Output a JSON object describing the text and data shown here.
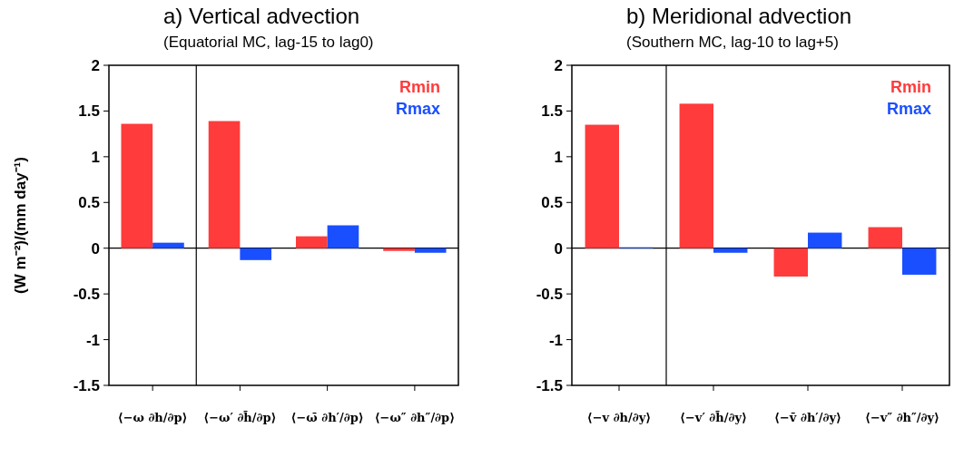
{
  "chart_data": [
    {
      "type": "bar",
      "title": "a) Vertical advection",
      "subtitle": "(Equatorial MC, lag-15 to lag0)",
      "ylabel": "(W m⁻²)/(mm day⁻¹)",
      "categories": [
        "⟨−ω ∂h/∂p⟩",
        "⟨−ω′ ∂h̄/∂p⟩",
        "⟨−ω̄ ∂h′/∂p⟩",
        "⟨−ω″ ∂h″/∂p⟩"
      ],
      "series": [
        {
          "name": "Rmin",
          "color": "#ff3b3b",
          "values": [
            1.36,
            1.39,
            0.13,
            -0.03
          ]
        },
        {
          "name": "Rmax",
          "color": "#1a4fff",
          "values": [
            0.06,
            -0.13,
            0.25,
            -0.05
          ]
        }
      ],
      "ylim": [
        -1.5,
        2
      ],
      "yticks": [
        -1.5,
        -1,
        -0.5,
        0,
        0.5,
        1,
        1.5,
        2
      ],
      "legend": "top right",
      "grid": false,
      "ref_lines": [
        {
          "axis": "y",
          "value": 0
        }
      ]
    },
    {
      "type": "bar",
      "title": "b) Meridional advection",
      "subtitle": "(Southern MC, lag-10 to lag+5)",
      "categories": [
        "⟨−v ∂h/∂y⟩",
        "⟨−v′ ∂h̄/∂y⟩",
        "⟨−v̄ ∂h′/∂y⟩",
        "⟨−v″ ∂h″/∂y⟩"
      ],
      "series": [
        {
          "name": "Rmin",
          "color": "#ff3b3b",
          "values": [
            1.35,
            1.58,
            -0.31,
            0.23
          ]
        },
        {
          "name": "Rmax",
          "color": "#1a4fff",
          "values": [
            0.01,
            -0.05,
            0.17,
            -0.29
          ]
        }
      ],
      "ylim": [
        -1.5,
        2
      ],
      "yticks": [
        -1.5,
        -1,
        -0.5,
        0,
        0.5,
        1,
        1.5,
        2
      ],
      "legend": "top right",
      "grid": false,
      "ref_lines": [
        {
          "axis": "y",
          "value": 0
        }
      ]
    }
  ]
}
